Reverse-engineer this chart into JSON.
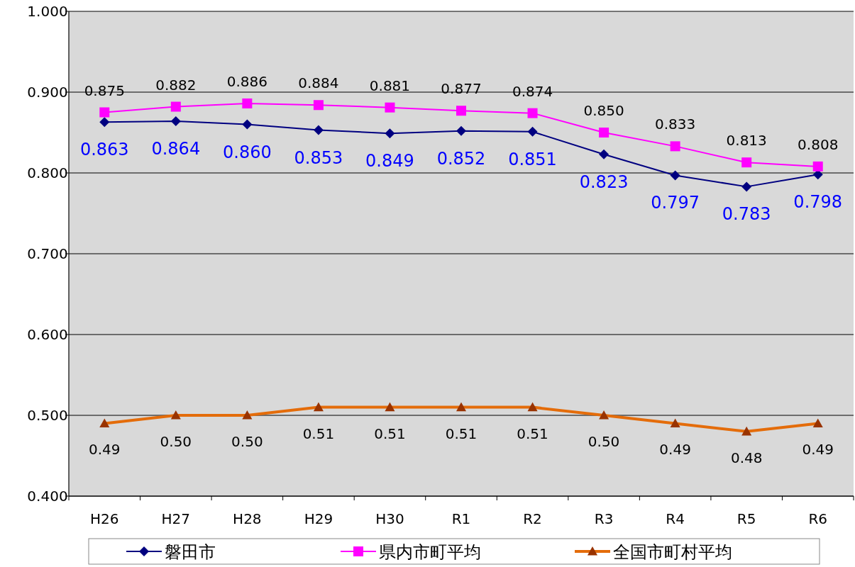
{
  "chart_data": {
    "type": "line",
    "categories": [
      "H26",
      "H27",
      "H28",
      "H29",
      "H30",
      "R1",
      "R2",
      "R3",
      "R4",
      "R5",
      "R6"
    ],
    "ylim": [
      0.4,
      1.0
    ],
    "yticks": [
      {
        "value": 0.4,
        "label": "0.400"
      },
      {
        "value": 0.5,
        "label": "0.500"
      },
      {
        "value": 0.6,
        "label": "0.600"
      },
      {
        "value": 0.7,
        "label": "0.700"
      },
      {
        "value": 0.8,
        "label": "0.800"
      },
      {
        "value": 0.9,
        "label": "0.900"
      },
      {
        "value": 1.0,
        "label": "1.000"
      }
    ],
    "grid": "y",
    "legend": "bottom",
    "line_style": "solid",
    "series": [
      {
        "name": "磐田市",
        "color": "#000080",
        "marker": "diamond",
        "values": [
          0.863,
          0.864,
          0.86,
          0.853,
          0.849,
          0.852,
          0.851,
          0.823,
          0.797,
          0.783,
          0.798
        ],
        "value_labels": [
          "0.863",
          "0.864",
          "0.860",
          "0.853",
          "0.849",
          "0.852",
          "0.851",
          "0.823",
          "0.797",
          "0.783",
          "0.798"
        ]
      },
      {
        "name": "県内市町平均",
        "color": "#ff00ff",
        "marker": "square",
        "values": [
          0.875,
          0.882,
          0.886,
          0.884,
          0.881,
          0.877,
          0.874,
          0.85,
          0.833,
          0.813,
          0.808
        ],
        "value_labels": [
          "0.875",
          "0.882",
          "0.886",
          "0.884",
          "0.881",
          "0.877",
          "0.874",
          "0.850",
          "0.833",
          "0.813",
          "0.808"
        ]
      },
      {
        "name": "全国市町村平均",
        "color": "#e46c0a",
        "marker": "triangle",
        "values": [
          0.49,
          0.5,
          0.5,
          0.51,
          0.51,
          0.51,
          0.51,
          0.5,
          0.49,
          0.48,
          0.49
        ],
        "value_labels": [
          "0.49",
          "0.50",
          "0.50",
          "0.51",
          "0.51",
          "0.51",
          "0.51",
          "0.50",
          "0.49",
          "0.48",
          "0.49"
        ]
      }
    ]
  }
}
